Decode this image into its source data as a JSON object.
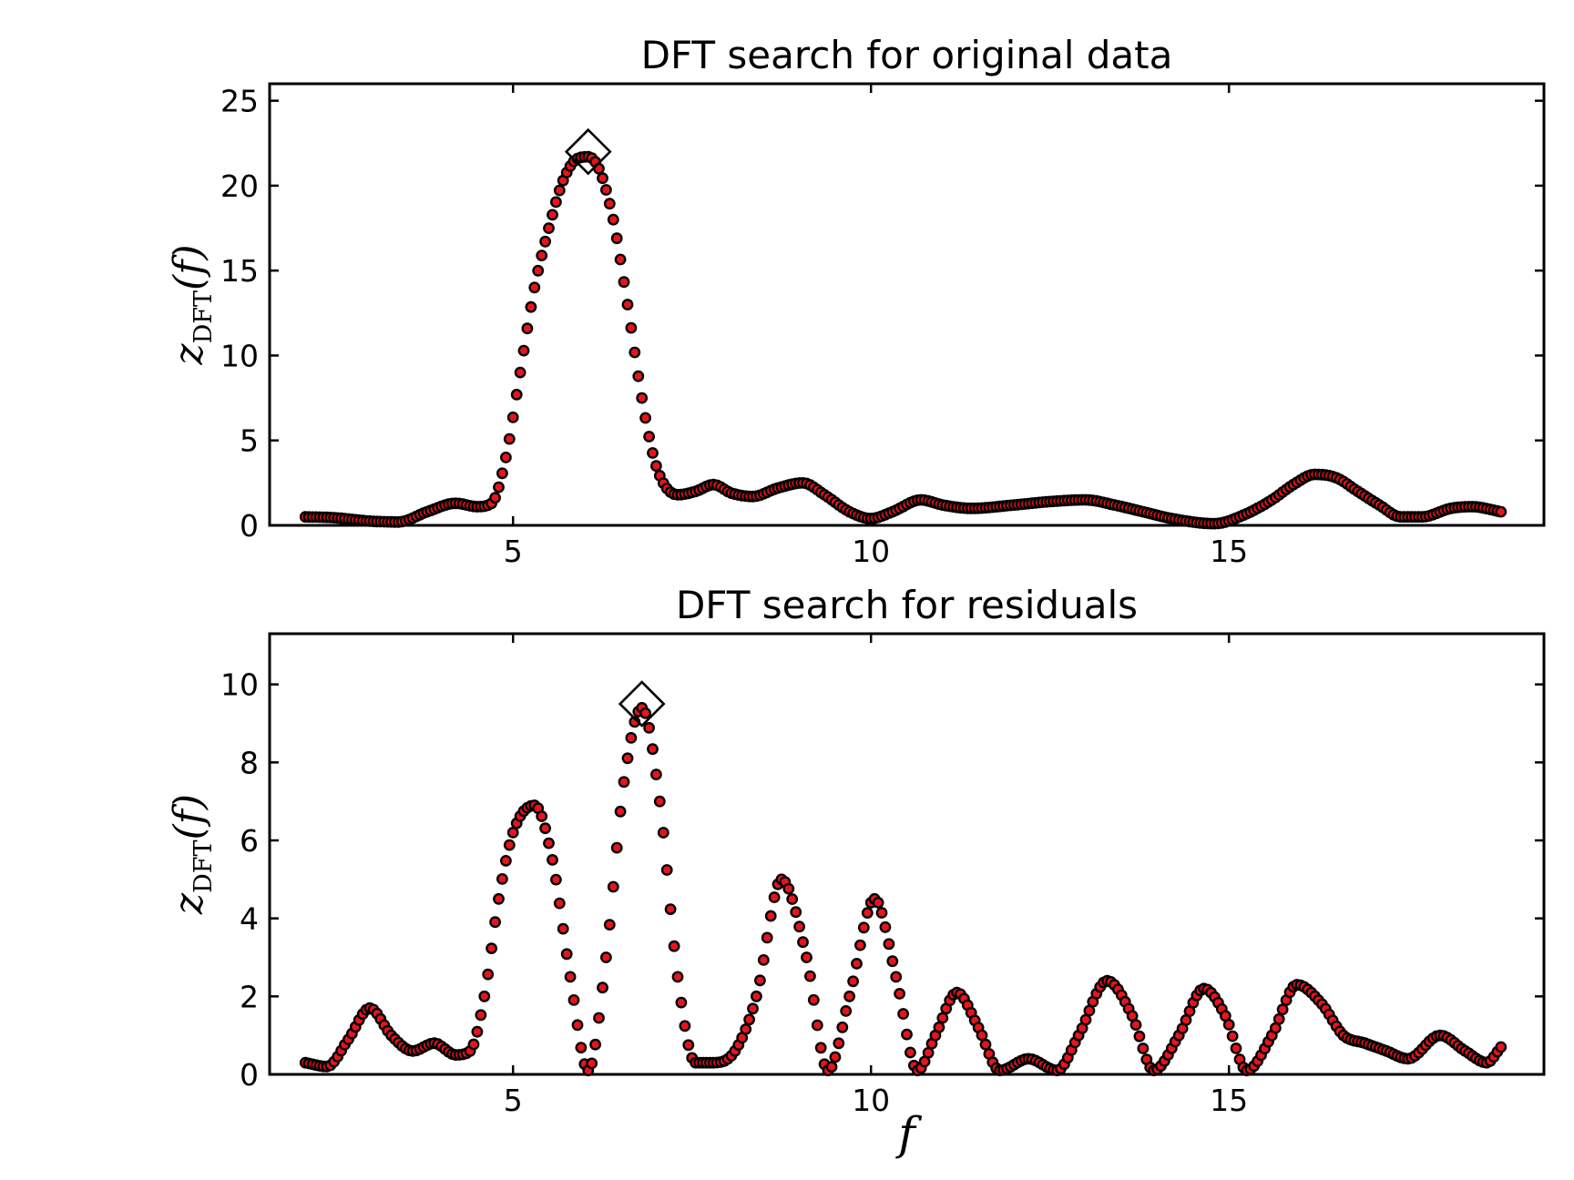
{
  "chart_data": [
    {
      "type": "scatter",
      "title": "DFT search for original data",
      "xlabel": "",
      "ylabel": "z_DFT(f)",
      "ylabel_main": "z",
      "ylabel_sub": "DFT",
      "ylabel_arg": "(f)",
      "xlim": [
        1.6,
        19.4
      ],
      "ylim": [
        0,
        26
      ],
      "xticks": [
        5,
        10,
        15
      ],
      "xtick_labels": [
        "5",
        "10",
        "15"
      ],
      "yticks": [
        0,
        5,
        10,
        15,
        20,
        25
      ],
      "ytick_labels": [
        "0",
        "5",
        "10",
        "15",
        "20",
        "25"
      ],
      "marker_color": "#e8141c",
      "edge_color": "#000000",
      "peak_marker": {
        "x": 6.05,
        "y": 22.0
      },
      "x": [
        2.1,
        2.5,
        3.0,
        3.4,
        3.8,
        4.2,
        4.5,
        4.7,
        4.9,
        5.1,
        5.3,
        5.5,
        5.7,
        5.9,
        6.05,
        6.2,
        6.4,
        6.6,
        6.8,
        7.0,
        7.3,
        7.55,
        7.8,
        8.05,
        8.35,
        8.7,
        9.05,
        9.35,
        9.7,
        10.0,
        10.3,
        10.7,
        11.0,
        11.4,
        12.0,
        12.5,
        13.0,
        13.4,
        13.8,
        14.2,
        14.8,
        15.2,
        15.6,
        15.9,
        16.2,
        16.5,
        16.8,
        17.1,
        17.4,
        17.7,
        18.1,
        18.4,
        18.8
      ],
      "y": [
        0.5,
        0.45,
        0.25,
        0.2,
        0.8,
        1.3,
        1.1,
        1.3,
        4.0,
        9.0,
        14.0,
        17.5,
        20.3,
        21.6,
        21.7,
        21.0,
        18.0,
        13.0,
        7.5,
        3.5,
        1.8,
        2.0,
        2.4,
        1.9,
        1.7,
        2.2,
        2.5,
        1.8,
        0.8,
        0.4,
        0.8,
        1.5,
        1.2,
        1.0,
        1.2,
        1.4,
        1.5,
        1.2,
        0.8,
        0.4,
        0.1,
        0.6,
        1.5,
        2.4,
        3.0,
        2.8,
        2.0,
        1.2,
        0.5,
        0.5,
        1.0,
        1.1,
        0.8
      ]
    },
    {
      "type": "scatter",
      "title": "DFT search for residuals",
      "xlabel": "f",
      "ylabel": "z_DFT(f)",
      "ylabel_main": "z",
      "ylabel_sub": "DFT",
      "ylabel_arg": "(f)",
      "xlim": [
        1.6,
        19.4
      ],
      "ylim": [
        0,
        11.3
      ],
      "xticks": [
        5,
        10,
        15
      ],
      "xtick_labels": [
        "5",
        "10",
        "15"
      ],
      "yticks": [
        0,
        2,
        4,
        6,
        8,
        10
      ],
      "ytick_labels": [
        "0",
        "2",
        "4",
        "6",
        "8",
        "10"
      ],
      "marker_color": "#e8141c",
      "edge_color": "#000000",
      "peak_marker": {
        "x": 6.8,
        "y": 9.5
      },
      "x": [
        2.1,
        2.4,
        2.7,
        3.0,
        3.3,
        3.6,
        3.9,
        4.2,
        4.4,
        4.6,
        4.8,
        5.0,
        5.3,
        5.55,
        5.8,
        6.05,
        6.3,
        6.55,
        6.8,
        7.05,
        7.3,
        7.55,
        7.8,
        8.1,
        8.4,
        8.75,
        9.1,
        9.4,
        9.7,
        10.05,
        10.35,
        10.65,
        10.9,
        11.2,
        11.5,
        11.8,
        12.2,
        12.6,
        12.9,
        13.3,
        13.65,
        13.95,
        14.3,
        14.65,
        14.95,
        15.25,
        15.6,
        15.95,
        16.3,
        16.6,
        16.9,
        17.2,
        17.5,
        17.95,
        18.3,
        18.6,
        18.8
      ],
      "y": [
        0.3,
        0.2,
        0.9,
        1.7,
        1.0,
        0.6,
        0.8,
        0.5,
        0.6,
        2.0,
        4.5,
        6.2,
        6.9,
        5.5,
        2.5,
        0.1,
        3.0,
        7.5,
        9.4,
        7.0,
        2.5,
        0.3,
        0.3,
        0.6,
        2.0,
        5.0,
        3.0,
        0.1,
        2.0,
        4.5,
        2.5,
        0.1,
        1.0,
        2.1,
        1.2,
        0.1,
        0.4,
        0.1,
        1.0,
        2.4,
        1.5,
        0.1,
        1.0,
        2.2,
        1.5,
        0.1,
        1.0,
        2.3,
        1.8,
        1.0,
        0.8,
        0.6,
        0.4,
        1.0,
        0.6,
        0.3,
        0.7
      ]
    }
  ]
}
